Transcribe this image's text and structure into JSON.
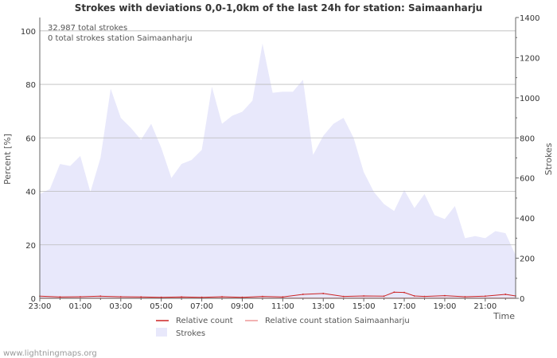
{
  "chart_data": {
    "type": "area",
    "title": "Strokes with deviations 0,0-1,0km of the last 24h for station: Saimaanharju",
    "annotations": [
      "32.987 total strokes",
      "0 total strokes station Saimaanharju"
    ],
    "ylabel_left": "Percent   [%]",
    "ylabel_right": "Strokes",
    "xlabel": "Time",
    "y_left_range": [
      0,
      105
    ],
    "y_left_ticks": [
      "0",
      "20",
      "40",
      "60",
      "80",
      "100"
    ],
    "y_right_range": [
      0,
      1400
    ],
    "y_right_ticks": [
      "0",
      "200",
      "400",
      "600",
      "800",
      "1000",
      "1200",
      "1400"
    ],
    "x_ticks": [
      "23:00",
      "01:00",
      "03:00",
      "05:00",
      "07:00",
      "09:00",
      "11:00",
      "13:00",
      "15:00",
      "17:00",
      "19:00",
      "21:00"
    ],
    "x_range_hours": [
      0,
      23.5
    ],
    "grid": true,
    "legend": [
      {
        "key": "relative",
        "label": "Relative count",
        "color": "#cc2222"
      },
      {
        "key": "station",
        "label": "Relative count station Saimaanharju",
        "color": "#ee9999"
      },
      {
        "key": "strokes",
        "label": "Strokes",
        "color": "#e8e8fb"
      }
    ],
    "series": [
      {
        "name": "Strokes",
        "axis": "right",
        "x_hours": [
          0,
          0.5,
          1,
          1.5,
          2,
          2.5,
          3,
          3.5,
          4,
          4.5,
          5,
          5.5,
          6,
          6.5,
          7,
          7.5,
          8,
          8.5,
          9,
          9.5,
          10,
          10.5,
          11,
          11.5,
          12,
          12.5,
          13,
          13.5,
          14,
          14.5,
          15,
          15.5,
          16,
          16.5,
          17,
          17.5,
          18,
          18.5,
          19,
          19.5,
          20,
          20.5,
          21,
          21.5,
          22,
          22.5,
          23,
          23.5
        ],
        "values": [
          520,
          545,
          670,
          660,
          710,
          530,
          700,
          1045,
          900,
          850,
          790,
          870,
          750,
          600,
          670,
          690,
          740,
          1055,
          870,
          910,
          930,
          985,
          1270,
          1025,
          1030,
          1030,
          1090,
          715,
          810,
          870,
          900,
          800,
          630,
          530,
          470,
          435,
          540,
          450,
          520,
          415,
          395,
          460,
          300,
          310,
          300,
          335,
          325,
          215
        ]
      },
      {
        "name": "Relative count",
        "axis": "left",
        "x_hours": [
          0,
          1,
          2,
          3,
          4,
          5,
          6,
          7,
          8,
          9,
          10,
          11,
          12,
          13,
          14,
          15,
          16,
          17,
          17.5,
          18,
          18.5,
          19,
          20,
          21,
          22,
          23,
          23.5
        ],
        "values": [
          0.8,
          0.5,
          0.6,
          0.8,
          0.6,
          0.5,
          0.4,
          0.5,
          0.4,
          0.6,
          0.4,
          0.7,
          0.5,
          1.5,
          1.8,
          0.7,
          0.9,
          0.8,
          2.3,
          2.2,
          0.9,
          0.7,
          1.0,
          0.6,
          0.8,
          1.5,
          0.9
        ]
      },
      {
        "name": "Relative count station Saimaanharju",
        "axis": "left",
        "x_hours": [
          0,
          23.5
        ],
        "values": [
          0,
          0
        ]
      }
    ]
  },
  "footer": {
    "credit": "www.lightningmaps.org"
  }
}
